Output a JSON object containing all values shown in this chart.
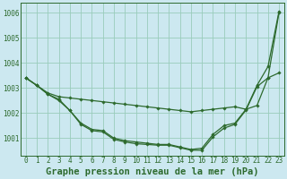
{
  "title": "Graphe pression niveau de la mer (hPa)",
  "x": [
    0,
    1,
    2,
    3,
    4,
    5,
    6,
    7,
    8,
    9,
    10,
    11,
    12,
    13,
    14,
    15,
    16,
    17,
    18,
    19,
    20,
    21,
    22,
    23
  ],
  "series": [
    [
      1003.4,
      1003.1,
      1002.8,
      1002.65,
      1002.6,
      1002.55,
      1002.5,
      1002.45,
      1002.4,
      1002.35,
      1002.3,
      1002.25,
      1002.2,
      1002.15,
      1002.1,
      1002.05,
      1002.1,
      1002.15,
      1002.2,
      1002.25,
      1002.15,
      1002.3,
      1003.4,
      1006.0
    ],
    [
      1003.4,
      1003.1,
      1002.75,
      1002.55,
      1002.1,
      1001.6,
      1001.35,
      1001.3,
      1001.0,
      1000.9,
      1000.85,
      1000.8,
      1000.75,
      1000.75,
      1000.65,
      1000.55,
      1000.6,
      1001.15,
      1001.5,
      1001.6,
      1002.15,
      1003.1,
      1003.85,
      1006.05
    ],
    [
      1003.4,
      1003.1,
      1002.75,
      1002.5,
      1002.1,
      1001.55,
      1001.3,
      1001.25,
      1000.95,
      1000.85,
      1000.78,
      1000.75,
      1000.72,
      1000.72,
      1000.62,
      1000.52,
      1000.52,
      1001.05,
      1001.4,
      1001.55,
      1002.12,
      1003.05,
      1003.4,
      1003.6
    ]
  ],
  "line_color": "#2d6a2d",
  "marker": "D",
  "marker_size": 1.8,
  "line_width": 0.9,
  "bg_color": "#cce8f0",
  "grid_color": "#99ccbb",
  "ylim": [
    1000.3,
    1006.4
  ],
  "yticks": [
    1001,
    1002,
    1003,
    1004,
    1005,
    1006
  ],
  "xticks": [
    0,
    1,
    2,
    3,
    4,
    5,
    6,
    7,
    8,
    9,
    10,
    11,
    12,
    13,
    14,
    15,
    16,
    17,
    18,
    19,
    20,
    21,
    22,
    23
  ],
  "title_fontsize": 7.5,
  "tick_fontsize": 5.5
}
